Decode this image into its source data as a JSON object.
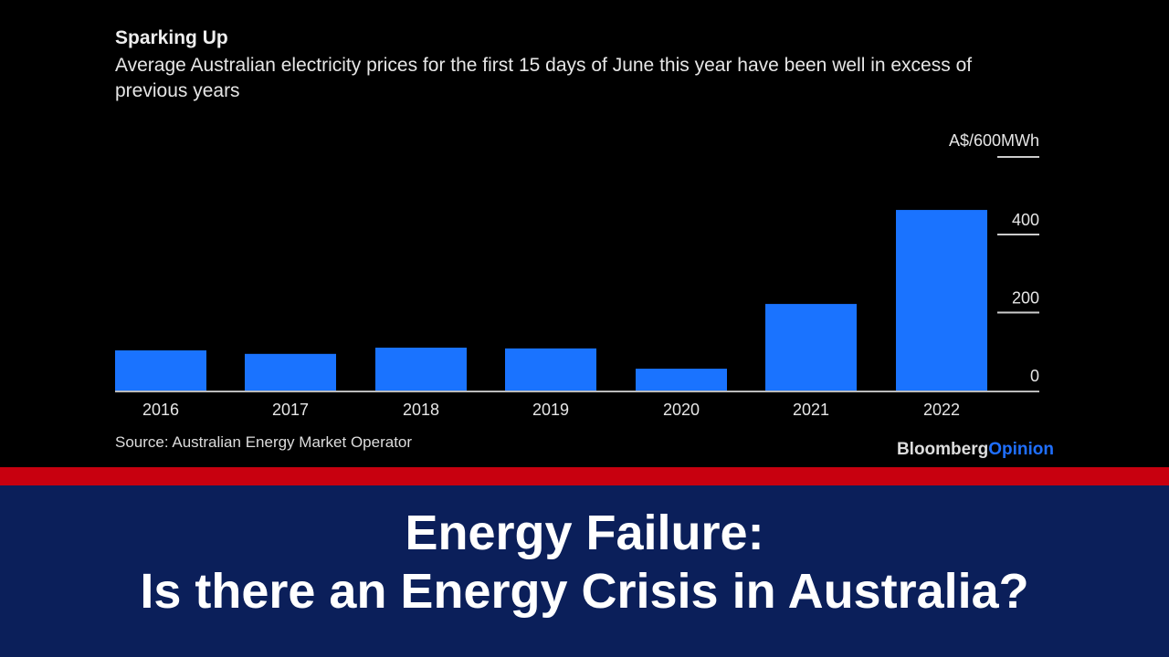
{
  "chart_data": {
    "type": "bar",
    "title": "Sparking Up",
    "subtitle": "Average Australian electricity prices for the first 15 days of June this year have been well in excess of previous years",
    "ylabel": "A$/600MWh",
    "categories": [
      "2016",
      "2017",
      "2018",
      "2019",
      "2020",
      "2021",
      "2022"
    ],
    "values": [
      103,
      94,
      110,
      108,
      56,
      222,
      463
    ],
    "yticks": [
      "0",
      "200",
      "400"
    ],
    "ylim": [
      0,
      600
    ],
    "bar_color": "#1a73ff",
    "source": "Source: Australian Energy Market Operator"
  },
  "brand": {
    "part1": "Bloomberg",
    "part2": "Opinion"
  },
  "banner": {
    "line1": "Energy Failure:",
    "line2": "Is there an Energy Crisis in Australia?"
  }
}
